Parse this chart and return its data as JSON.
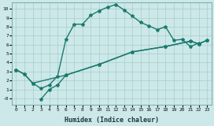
{
  "title": "",
  "xlabel": "Humidex (Indice chaleur)",
  "bg_color": "#cce8e8",
  "line_color": "#1a7a6e",
  "grid_color": "#aacccc",
  "xlim": [
    -0.5,
    23.5
  ],
  "ylim": [
    -0.7,
    10.7
  ],
  "xticks": [
    0,
    1,
    2,
    3,
    4,
    5,
    6,
    7,
    8,
    9,
    10,
    11,
    12,
    13,
    14,
    15,
    16,
    17,
    18,
    19,
    20,
    21,
    22,
    23
  ],
  "yticks": [
    0,
    1,
    2,
    3,
    4,
    5,
    6,
    7,
    8,
    9,
    10
  ],
  "ytick_labels": [
    "-0",
    "1",
    "2",
    "3",
    "4",
    "5",
    "6",
    "7",
    "8",
    "9",
    "10"
  ],
  "line1_x": [
    0,
    1,
    2,
    3,
    4,
    5,
    6,
    7,
    8,
    9,
    10,
    11,
    12,
    13,
    14,
    15,
    16,
    17,
    18,
    19,
    20,
    21,
    22
  ],
  "line1_y": [
    3.2,
    2.7,
    1.7,
    1.1,
    1.5,
    2.5,
    6.6,
    8.3,
    8.3,
    9.3,
    9.8,
    10.2,
    10.5,
    9.9,
    9.2,
    8.5,
    8.1,
    7.7,
    8.0,
    6.5,
    6.6,
    5.8,
    6.2
  ],
  "line2_x": [
    3,
    4,
    5,
    6,
    10,
    14,
    18,
    21,
    22,
    23
  ],
  "line2_y": [
    -0.1,
    1.0,
    1.5,
    2.6,
    3.8,
    5.2,
    5.8,
    6.4,
    6.1,
    6.5
  ],
  "line3_x": [
    0,
    1,
    2,
    6,
    10,
    14,
    18,
    21,
    22,
    23
  ],
  "line3_y": [
    3.2,
    2.7,
    1.7,
    2.6,
    3.8,
    5.2,
    5.8,
    6.4,
    6.1,
    6.5
  ],
  "marker": "*",
  "marker_size": 3.0,
  "linewidth": 1.0
}
